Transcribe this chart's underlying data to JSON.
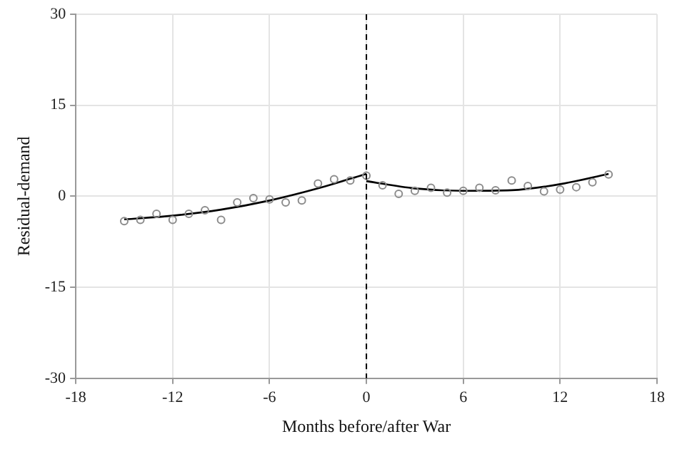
{
  "chart_data": {
    "type": "scatter",
    "xlabel": "Months before/after War",
    "ylabel": "Residual-demand",
    "xlim": [
      -18,
      18
    ],
    "xticks": [
      -18,
      -12,
      -6,
      0,
      6,
      12,
      18
    ],
    "ylim": [
      -30,
      30
    ],
    "yticks": [
      -30,
      -15,
      0,
      15,
      30
    ],
    "grid": true,
    "legend": false,
    "ref_lines": [
      {
        "axis": "x",
        "value": 0,
        "color": "#000000",
        "line_style": "dashed"
      }
    ],
    "series": [
      {
        "type": "scatter",
        "marker": "circle",
        "color": "#8c8c8c",
        "x": [
          -15,
          -14,
          -13,
          -12,
          -11,
          -10,
          -9,
          -8,
          -7,
          -6,
          -5,
          -4,
          -3,
          -2,
          -1,
          0,
          1,
          2,
          3,
          4,
          5,
          6,
          7,
          8,
          9,
          10,
          11,
          12,
          13,
          14,
          15
        ],
        "values": [
          -4.1,
          -3.9,
          -2.9,
          -3.9,
          -2.9,
          -2.3,
          -3.9,
          -1.0,
          -0.3,
          -0.5,
          -1.0,
          -0.7,
          2.1,
          2.8,
          2.6,
          3.4,
          1.8,
          0.4,
          0.9,
          1.4,
          0.6,
          0.9,
          1.4,
          1.0,
          2.6,
          1.7,
          0.8,
          1.1,
          1.5,
          2.3,
          3.6
        ]
      },
      {
        "type": "line",
        "marker": "none",
        "line_style": "solid",
        "color": "#000000",
        "x": [
          -15,
          -12,
          -9,
          -6,
          -3,
          0
        ],
        "values": [
          -3.8,
          -3.2,
          -2.2,
          -0.7,
          1.3,
          3.7
        ]
      },
      {
        "type": "line",
        "marker": "none",
        "line_style": "solid",
        "color": "#000000",
        "x": [
          0,
          3,
          6,
          9,
          12,
          15
        ],
        "values": [
          2.5,
          1.3,
          0.9,
          1.0,
          2.0,
          3.7
        ]
      }
    ]
  }
}
